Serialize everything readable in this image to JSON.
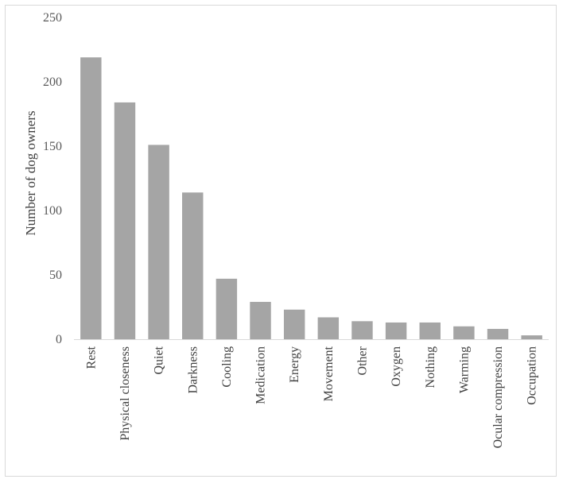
{
  "chart_data": {
    "type": "bar",
    "title": "",
    "xlabel": "",
    "ylabel": "Number of dog owners",
    "ylim": [
      0,
      250
    ],
    "yticks": [
      0,
      50,
      100,
      150,
      200,
      250
    ],
    "grid": false,
    "legend": "none",
    "bar_color": "#a5a5a5",
    "axis_color": "#d9d9d9",
    "categories": [
      "Rest",
      "Physical closeness",
      "Quiet",
      "Darkness",
      "Cooling",
      "Medication",
      "Energy",
      "Movement",
      "Other",
      "Oxygen",
      "Nothing",
      "Warming",
      "Ocular compression",
      "Occupation"
    ],
    "values": [
      219,
      184,
      151,
      114,
      47,
      29,
      23,
      17,
      14,
      13,
      13,
      10,
      8,
      3
    ]
  }
}
